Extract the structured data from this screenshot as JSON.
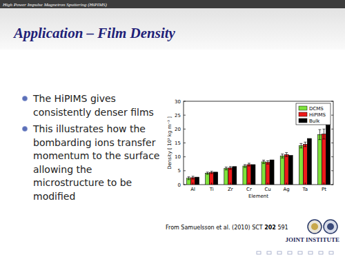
{
  "slide": {
    "header": "High Power Impulse Magnetron Sputtering (HiPIMS)",
    "title": "Application – Film Density",
    "bullets": [
      [
        "The HiPIMS gives",
        "consistently denser films"
      ],
      [
        "This illustrates how the",
        "bombarding ions transfer",
        "momentum to the surface",
        "allowing the",
        "microstructure to be",
        "modified"
      ]
    ],
    "caption": {
      "text": "From Samuelsson et al. (2010) SCT",
      "volume": "202",
      "pages": "591"
    },
    "logo_text": "JOINT INSTITUTE"
  },
  "chart_data": {
    "type": "bar",
    "x_label": "Element",
    "y_label": "Density [ 10³ kg m⁻³ ]",
    "categories": [
      "Al",
      "Ti",
      "Zr",
      "Cr",
      "Cu",
      "Ag",
      "Ta",
      "Pt"
    ],
    "series": [
      {
        "name": "DCMS",
        "color": "#7ee23c",
        "values": [
          2.3,
          4.1,
          5.8,
          6.7,
          8.2,
          10.3,
          14.0,
          18.0
        ],
        "errors": [
          0.5,
          0.4,
          0.5,
          0.5,
          0.6,
          0.7,
          0.8,
          1.8
        ]
      },
      {
        "name": "HiPIMS",
        "color": "#ee1a1a",
        "values": [
          2.5,
          4.4,
          6.0,
          7.2,
          8.0,
          10.8,
          14.5,
          18.2
        ],
        "errors": [
          0.5,
          0.4,
          0.5,
          0.5,
          0.6,
          0.7,
          0.8,
          1.8
        ]
      },
      {
        "name": "Bulk",
        "color": "#000000",
        "values": [
          2.7,
          4.5,
          6.5,
          7.2,
          8.9,
          10.5,
          16.6,
          21.4
        ]
      }
    ],
    "ylim": [
      0,
      30
    ],
    "yticks": [
      0,
      5,
      10,
      15,
      20,
      25,
      30
    ],
    "legend": "upper right",
    "grid": false
  }
}
